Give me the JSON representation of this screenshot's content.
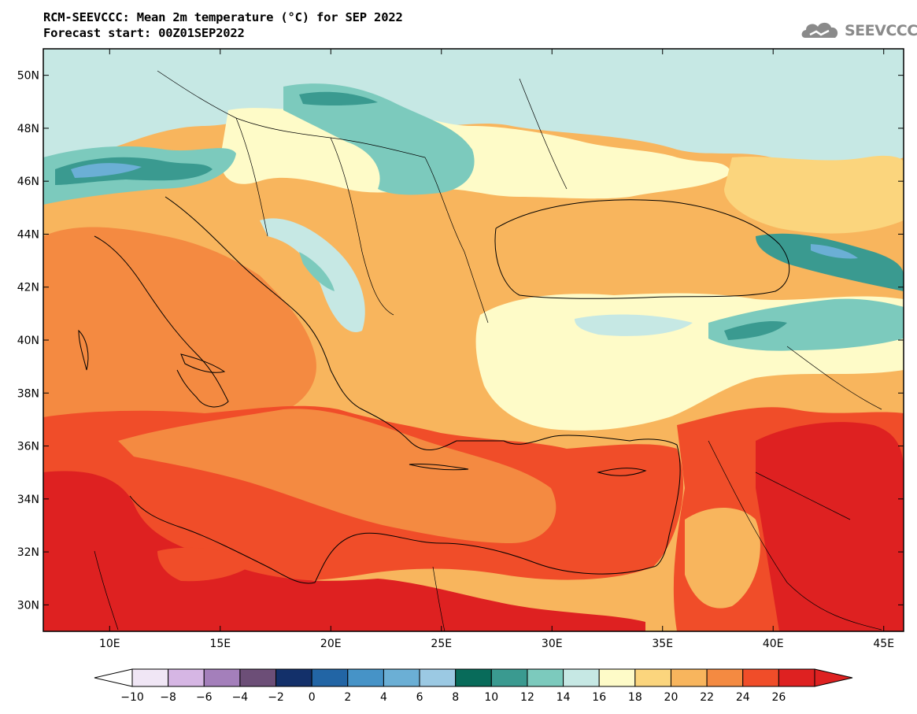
{
  "header": {
    "title_line1": "RCM-SEEVCCC: Mean 2m temperature (°C) for SEP 2022",
    "title_line2": "Forecast start: 00Z01SEP2022",
    "logo_text": "SEEVCCC"
  },
  "map": {
    "lat_labels": [
      "50N",
      "48N",
      "46N",
      "44N",
      "42N",
      "40N",
      "38N",
      "36N",
      "34N",
      "32N",
      "30N"
    ],
    "lon_labels": [
      "10E",
      "15E",
      "20E",
      "25E",
      "30E",
      "35E",
      "40E",
      "45E"
    ],
    "extent": {
      "lon_min": 7,
      "lon_max": 45.9,
      "lat_min": 29,
      "lat_max": 51
    }
  },
  "colorbar": {
    "tick_labels": [
      "-10",
      "-8",
      "-6",
      "-4",
      "-2",
      "0",
      "2",
      "4",
      "6",
      "8",
      "10",
      "12",
      "14",
      "16",
      "18",
      "20",
      "22",
      "24",
      "26"
    ],
    "colors": [
      "#f0e6f5",
      "#d6b6e4",
      "#a47fbb",
      "#6c4e77",
      "#13306a",
      "#2265a5",
      "#4693c7",
      "#6bafd5",
      "#9bc9e3",
      "#086b5a",
      "#3a9a90",
      "#7ccabd",
      "#c6e8e4",
      "#fefbc8",
      "#fbd57d",
      "#f8b55d",
      "#f48a41",
      "#f04d29",
      "#de2121"
    ],
    "under_color": "#ffffff",
    "over_color": "#de2121"
  }
}
